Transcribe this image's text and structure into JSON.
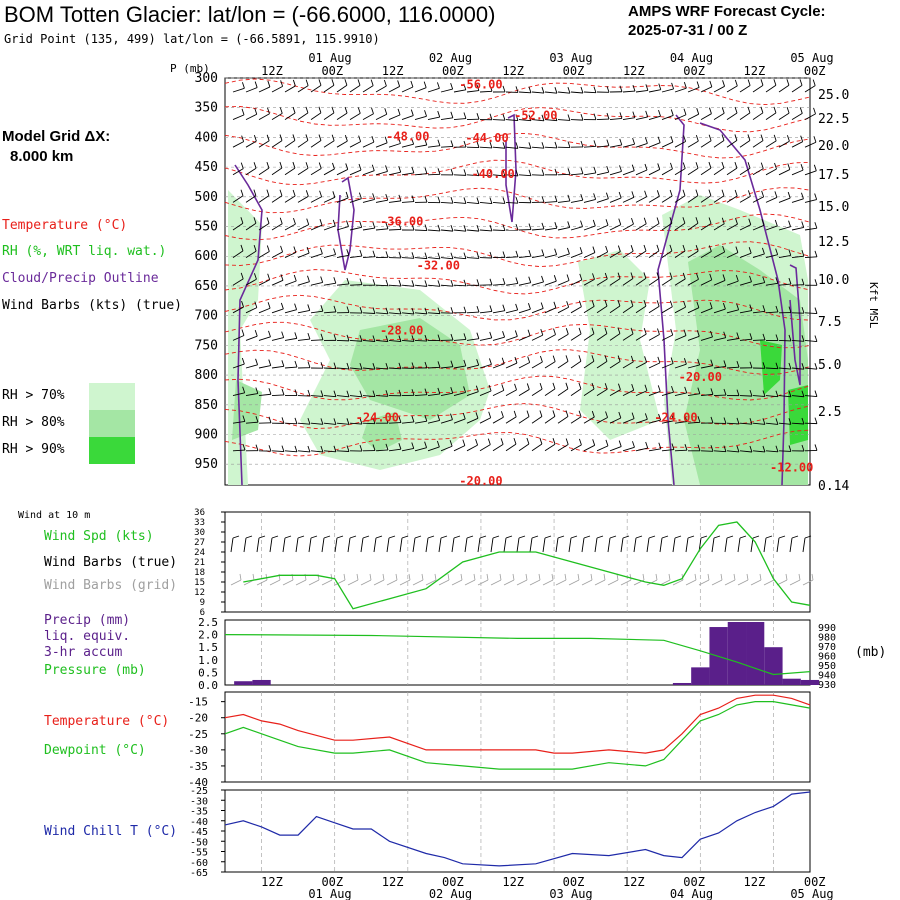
{
  "header": {
    "title": "BOM Totten Glacier:  lat/lon = (-66.6000, 116.0000)",
    "subtitle": "Grid Point (135, 499) lat/lon = (-66.5891, 115.9910)",
    "cycle_label": "AMPS WRF Forecast Cycle:",
    "cycle_value": "2025-07-31 / 00  Z"
  },
  "side": {
    "model_grid_label": "Model Grid ΔX:",
    "model_grid_value": "8.000 km",
    "temperature_legend": "Temperature (°C)",
    "rh_legend": "RH (%, WRT liq. wat.)",
    "cloud_legend": "Cloud/Precip Outline",
    "wind_legend": "Wind Barbs (kts) (true)",
    "rh70": "RH > 70%",
    "rh80": "RH > 80%",
    "rh90": "RH > 90%",
    "wind10m": "Wind at 10 m",
    "wind_spd": "Wind Spd (kts)",
    "wind_barbs_true": "Wind Barbs (true)",
    "wind_barbs_grid": "Wind Barbs (grid)",
    "precip_line1": "Precip (mm)",
    "precip_line2": "liq. equiv.",
    "precip_line3": "3-hr accum",
    "pressure_label": "Pressure (mb)",
    "temp_label": "Temperature (°C)",
    "dew_label": "Dewpoint (°C)",
    "windchill_label": "Wind Chill T (°C)",
    "mb_unit": "(mb)",
    "kft_label": "Kft MSL",
    "p_label": "P (mb)"
  },
  "colors": {
    "temperature": "#e8201a",
    "dewpoint": "#1fbf1f",
    "cloud_outline": "#6a2a9a",
    "windchill": "#1f2aa8",
    "rh70": "#cff5cf",
    "rh80": "#a4e6a4",
    "rh90": "#3ad93a",
    "precip": "#5a1f8a",
    "grid_barbs": "#a0a0a0"
  },
  "time_axis": {
    "top_hours": [
      "12Z",
      "00Z",
      "12Z",
      "00Z",
      "12Z",
      "00Z",
      "12Z",
      "00Z",
      "12Z",
      "00Z"
    ],
    "top_dates": [
      "01 Aug",
      "02 Aug",
      "03 Aug",
      "04 Aug",
      "05 Aug"
    ],
    "bottom_hours": [
      "12Z",
      "00Z",
      "12Z",
      "00Z",
      "12Z",
      "00Z",
      "12Z",
      "00Z",
      "12Z",
      "00Z"
    ],
    "bottom_dates": [
      "01 Aug",
      "02 Aug",
      "03 Aug",
      "04 Aug",
      "05 Aug"
    ]
  },
  "chart_data": [
    {
      "type": "heatmap",
      "pressure_ticks": [
        "300",
        "350",
        "400",
        "450",
        "500",
        "550",
        "600",
        "650",
        "700",
        "750",
        "800",
        "850",
        "900",
        "950"
      ],
      "height_ticks": [
        "25.0",
        "22.5",
        "20.0",
        "17.5",
        "15.0",
        "12.5",
        "10.0",
        "7.5",
        "5.0",
        "2.5",
        "0.14"
      ],
      "temperature_labels": [
        {
          "text": "-56.00",
          "hour": 42,
          "p": 318
        },
        {
          "text": "-52.00",
          "hour": 51,
          "p": 370
        },
        {
          "text": "-48.00",
          "hour": 30,
          "p": 405
        },
        {
          "text": "-44.00",
          "hour": 43,
          "p": 408
        },
        {
          "text": "-40.00",
          "hour": 44,
          "p": 468
        },
        {
          "text": "-36.00",
          "hour": 29,
          "p": 548
        },
        {
          "text": "-32.00",
          "hour": 35,
          "p": 622
        },
        {
          "text": "-28.00",
          "hour": 29,
          "p": 732
        },
        {
          "text": "-24.00",
          "hour": 25,
          "p": 878
        },
        {
          "text": "-24.00",
          "hour": 74,
          "p": 878
        },
        {
          "text": "-20.00",
          "hour": 78,
          "p": 810
        },
        {
          "text": "-20.00",
          "hour": 42,
          "p": 985
        },
        {
          "text": "-12.00",
          "hour": 93,
          "p": 962
        }
      ]
    },
    {
      "type": "line",
      "title": "Wind Spd (kts)",
      "y_ticks": [
        "36",
        "33",
        "30",
        "27",
        "24",
        "21",
        "18",
        "15",
        "12",
        "9",
        "6"
      ],
      "ylim": [
        6,
        36
      ],
      "x_hours": [
        3,
        9,
        15,
        18,
        21,
        27,
        33,
        39,
        45,
        51,
        57,
        63,
        69,
        72,
        75,
        78,
        81,
        84,
        87,
        90,
        93,
        96
      ],
      "values": [
        15,
        17,
        17,
        16,
        7,
        10,
        13,
        21,
        24,
        24,
        21,
        18,
        15,
        14,
        16,
        25,
        32,
        33,
        27,
        16,
        9,
        8
      ]
    },
    {
      "type": "bar",
      "title": "Precip (mm)",
      "y_ticks": [
        "2.5",
        "2.0",
        "1.5",
        "1.0",
        "0.5",
        "0.0"
      ],
      "pressure_ticks": [
        "990",
        "980",
        "970",
        "960",
        "950",
        "940",
        "930"
      ],
      "ylim": [
        0,
        2.5
      ],
      "bars": [
        {
          "hour_start": 1.5,
          "hour_end": 4.5,
          "value": 0.15
        },
        {
          "hour_start": 4.5,
          "hour_end": 7.5,
          "value": 0.2
        },
        {
          "hour_start": 73.5,
          "hour_end": 76.5,
          "value": 0.08
        },
        {
          "hour_start": 76.5,
          "hour_end": 79.5,
          "value": 0.7
        },
        {
          "hour_start": 79.5,
          "hour_end": 82.5,
          "value": 2.3
        },
        {
          "hour_start": 82.5,
          "hour_end": 85.5,
          "value": 2.5
        },
        {
          "hour_start": 85.5,
          "hour_end": 88.5,
          "value": 2.5
        },
        {
          "hour_start": 88.5,
          "hour_end": 91.5,
          "value": 1.5
        },
        {
          "hour_start": 91.5,
          "hour_end": 94.5,
          "value": 0.25
        },
        {
          "hour_start": 94.5,
          "hour_end": 97.5,
          "value": 0.2
        }
      ],
      "pressure_series": {
        "x_hours": [
          0,
          24,
          48,
          60,
          72,
          78,
          84,
          90,
          96
        ],
        "values": [
          982,
          981,
          978,
          978,
          976,
          965,
          953,
          940,
          943
        ]
      }
    },
    {
      "type": "line",
      "y_ticks": [
        "-15",
        "-20",
        "-25",
        "-30",
        "-35",
        "-40"
      ],
      "ylim": [
        -40,
        -12
      ],
      "series": [
        {
          "name": "Temperature (°C)",
          "x_hours": [
            0,
            3,
            6,
            9,
            12,
            18,
            21,
            27,
            33,
            39,
            45,
            51,
            54,
            57,
            63,
            69,
            72,
            75,
            78,
            81,
            84,
            87,
            90,
            93,
            96
          ],
          "values": [
            -20,
            -19,
            -21,
            -22,
            -24,
            -27,
            -27,
            -26,
            -30,
            -30,
            -30,
            -30,
            -31,
            -31,
            -30,
            -31,
            -30,
            -25,
            -19,
            -17,
            -14,
            -13,
            -13,
            -14,
            -16
          ]
        },
        {
          "name": "Dewpoint (°C)",
          "x_hours": [
            0,
            3,
            6,
            9,
            12,
            18,
            21,
            27,
            33,
            39,
            45,
            51,
            54,
            57,
            63,
            69,
            72,
            75,
            78,
            81,
            84,
            87,
            90,
            93,
            96
          ],
          "values": [
            -25,
            -23,
            -25,
            -27,
            -29,
            -31,
            -31,
            -30,
            -34,
            -35,
            -36,
            -36,
            -36,
            -36,
            -34,
            -35,
            -33,
            -27,
            -21,
            -19,
            -16,
            -15,
            -15,
            -16,
            -17
          ]
        }
      ]
    },
    {
      "type": "line",
      "title": "Wind Chill T (°C)",
      "y_ticks": [
        "-25",
        "-30",
        "-35",
        "-40",
        "-45",
        "-50",
        "-55",
        "-60",
        "-65"
      ],
      "ylim": [
        -65,
        -25
      ],
      "x_hours": [
        0,
        3,
        6,
        9,
        12,
        15,
        18,
        21,
        24,
        27,
        33,
        36,
        39,
        45,
        51,
        57,
        63,
        69,
        72,
        75,
        78,
        81,
        84,
        87,
        90,
        93,
        96
      ],
      "values": [
        -42,
        -40,
        -43,
        -47,
        -47,
        -38,
        -41,
        -44,
        -44,
        -50,
        -56,
        -58,
        -61,
        -62,
        -61,
        -56,
        -57,
        -54,
        -57,
        -58,
        -49,
        -46,
        -40,
        -36,
        -33,
        -27,
        -26
      ]
    }
  ]
}
